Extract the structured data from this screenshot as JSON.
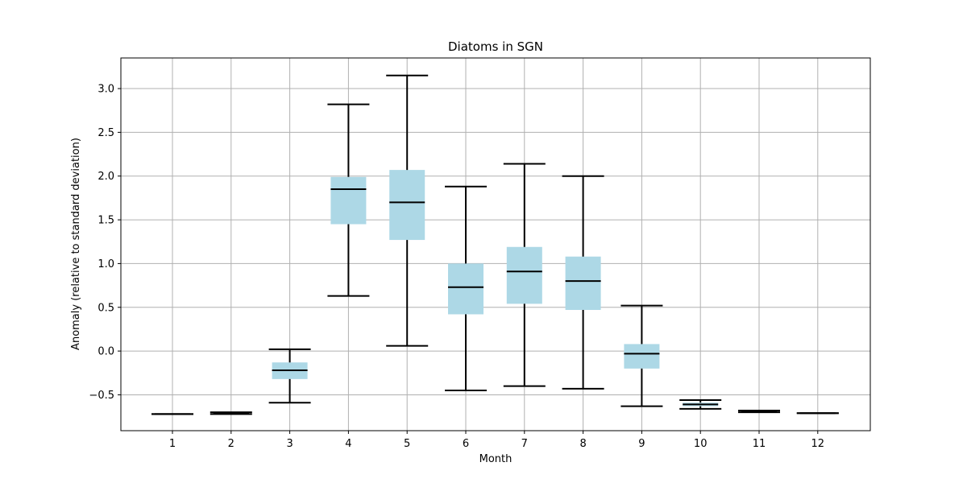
{
  "chart_data": {
    "type": "box",
    "title": "Diatoms in SGN",
    "xlabel": "Month",
    "ylabel": "Anomaly (relative to standard deviation)",
    "categories": [
      "1",
      "2",
      "3",
      "4",
      "5",
      "6",
      "7",
      "8",
      "9",
      "10",
      "11",
      "12"
    ],
    "y_ticks": [
      "−0.5",
      "0.0",
      "0.5",
      "1.0",
      "1.5",
      "2.0",
      "2.5",
      "3.0"
    ],
    "y_tick_values": [
      -0.5,
      0.0,
      0.5,
      1.0,
      1.5,
      2.0,
      2.5,
      3.0
    ],
    "ylim": [
      -0.91,
      3.35
    ],
    "grid": true,
    "box_color": "#add8e6",
    "line_color": "#000000",
    "grid_color": "#b0b0b0",
    "boxes": [
      {
        "month": "1",
        "whislo": -0.72,
        "q1": -0.72,
        "med": -0.72,
        "q3": -0.72,
        "whishi": -0.72
      },
      {
        "month": "2",
        "whislo": -0.72,
        "q1": -0.72,
        "med": -0.71,
        "q3": -0.7,
        "whishi": -0.7
      },
      {
        "month": "3",
        "whislo": -0.59,
        "q1": -0.32,
        "med": -0.22,
        "q3": -0.13,
        "whishi": 0.02
      },
      {
        "month": "4",
        "whislo": 0.63,
        "q1": 1.45,
        "med": 1.85,
        "q3": 1.99,
        "whishi": 2.82
      },
      {
        "month": "5",
        "whislo": 0.06,
        "q1": 1.27,
        "med": 1.7,
        "q3": 2.07,
        "whishi": 3.15
      },
      {
        "month": "6",
        "whislo": -0.45,
        "q1": 0.42,
        "med": 0.73,
        "q3": 1.0,
        "whishi": 1.88
      },
      {
        "month": "7",
        "whislo": -0.4,
        "q1": 0.54,
        "med": 0.91,
        "q3": 1.19,
        "whishi": 2.14
      },
      {
        "month": "8",
        "whislo": -0.43,
        "q1": 0.47,
        "med": 0.8,
        "q3": 1.08,
        "whishi": 2.0
      },
      {
        "month": "9",
        "whislo": -0.63,
        "q1": -0.2,
        "med": -0.03,
        "q3": 0.08,
        "whishi": 0.52
      },
      {
        "month": "10",
        "whislo": -0.66,
        "q1": -0.63,
        "med": -0.61,
        "q3": -0.59,
        "whishi": -0.56
      },
      {
        "month": "11",
        "whislo": -0.7,
        "q1": -0.7,
        "med": -0.69,
        "q3": -0.68,
        "whishi": -0.68
      },
      {
        "month": "12",
        "whislo": -0.71,
        "q1": -0.71,
        "med": -0.71,
        "q3": -0.71,
        "whishi": -0.71
      }
    ]
  }
}
